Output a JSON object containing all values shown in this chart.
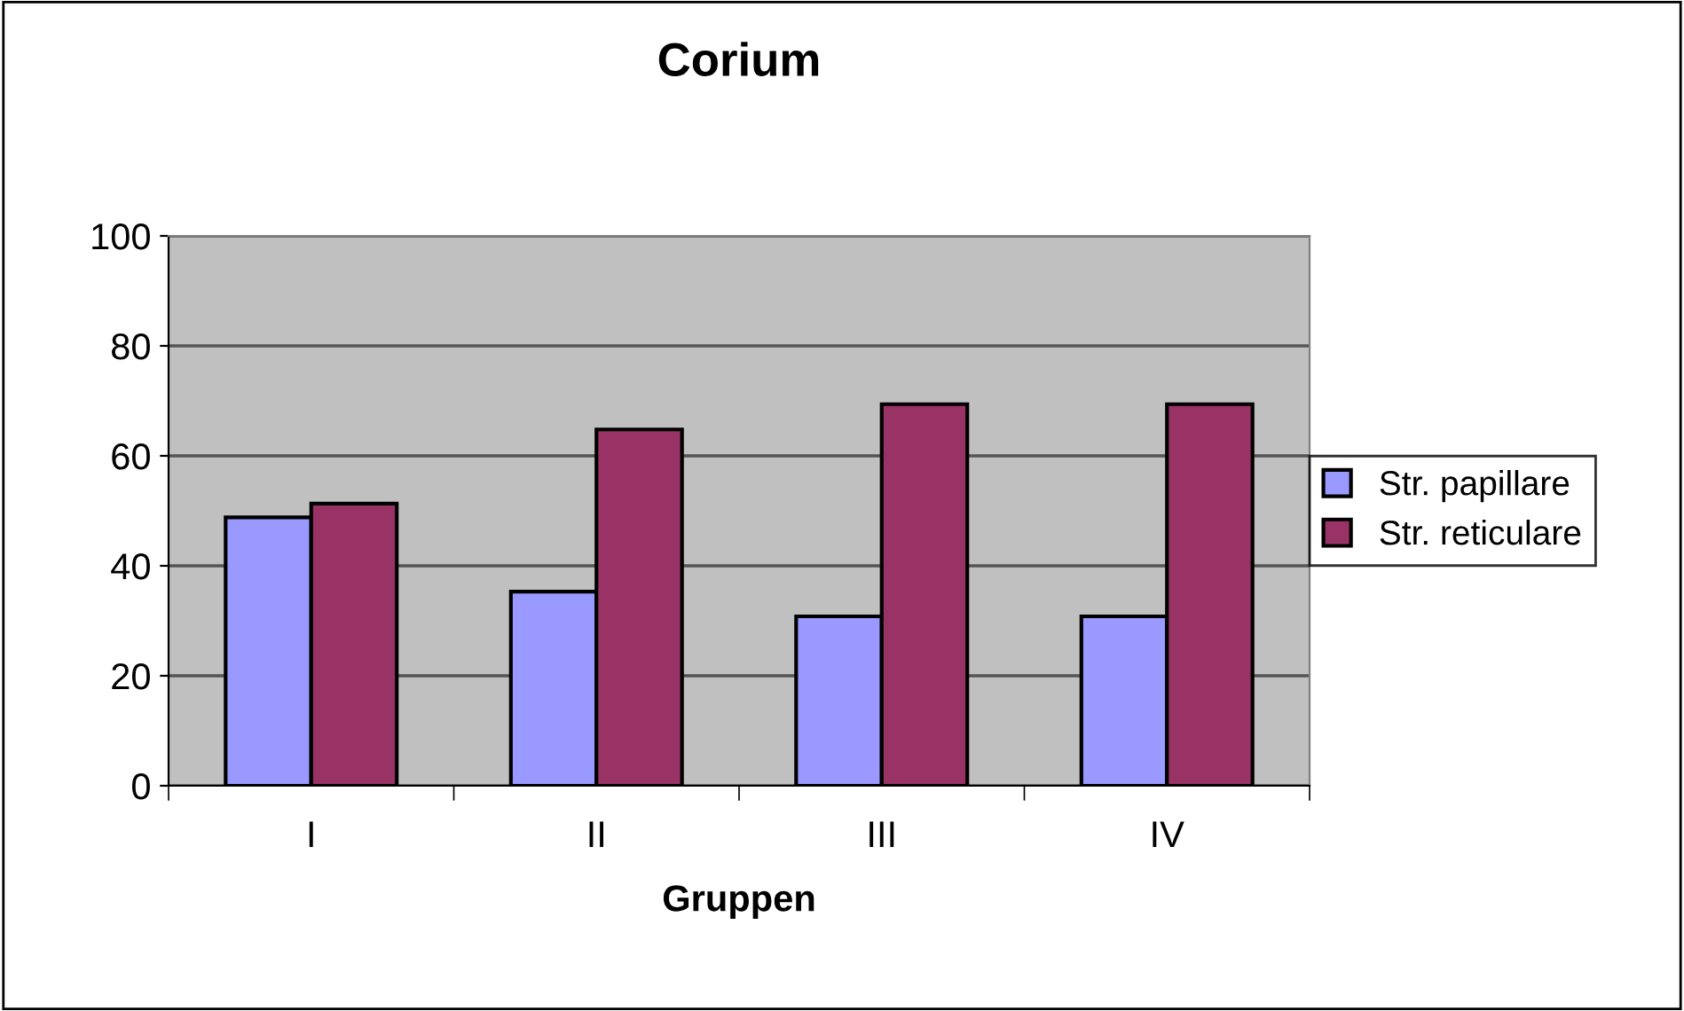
{
  "chart_data": {
    "type": "bar",
    "title": "Corium",
    "xlabel": "Gruppen",
    "categories": [
      "I",
      "II",
      "III",
      "IV"
    ],
    "series": [
      {
        "name": "Str. papillare",
        "color": "#9999ff",
        "values": [
          48.8,
          35.3,
          30.8,
          30.8
        ]
      },
      {
        "name": "Str. reticulare",
        "color": "#993366",
        "values": [
          51.3,
          64.8,
          69.4,
          69.4
        ]
      }
    ],
    "ylim": [
      0,
      100
    ],
    "yticks": [
      0,
      20,
      40,
      60,
      80,
      100
    ],
    "grid": "y",
    "legend": "right"
  }
}
